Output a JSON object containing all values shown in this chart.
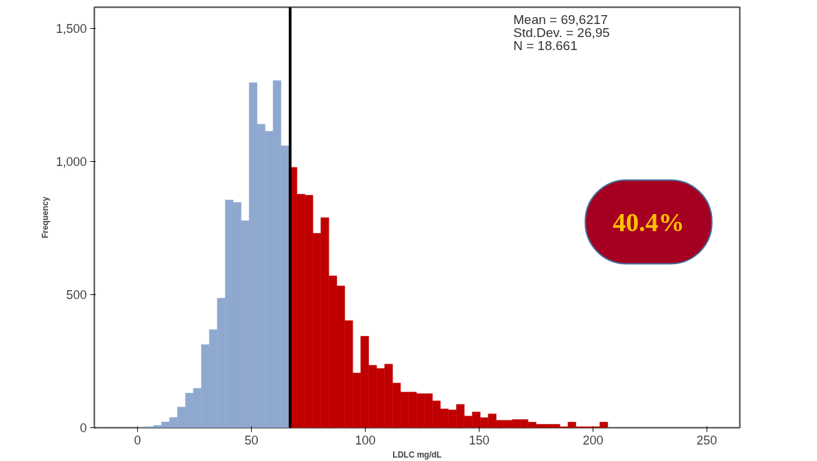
{
  "chart_data": {
    "type": "histogram",
    "bins": [
      0,
      3.5,
      7,
      10.5,
      14,
      17.5,
      21,
      24.5,
      28,
      31.5,
      35,
      38.5,
      42,
      45.5,
      49,
      52.5,
      56,
      59.5,
      63,
      66.5,
      70,
      73.5,
      77,
      80.5,
      84,
      87.5,
      91,
      94.5,
      98,
      101.5,
      105,
      108.5,
      112,
      115.5,
      119,
      122.5,
      126,
      129.5,
      133,
      136.5,
      140,
      143.5,
      147,
      150.5,
      154,
      157.5,
      161,
      164.5,
      168,
      171.5,
      175,
      178.5,
      182,
      185.5,
      189,
      192.5,
      196,
      199.5,
      203,
      206.5
    ],
    "values": [
      2,
      4,
      9,
      22,
      39,
      78,
      130,
      148,
      313,
      369,
      487,
      856,
      847,
      778,
      1297,
      1141,
      1115,
      1305,
      1060,
      979,
      878,
      874,
      731,
      790,
      571,
      533,
      403,
      206,
      344,
      235,
      223,
      239,
      168,
      134,
      134,
      128,
      128,
      101,
      71,
      67,
      88,
      44,
      59,
      38,
      52,
      28,
      28,
      31,
      31,
      21,
      13,
      13,
      13,
      4,
      21,
      4,
      4,
      4,
      21
    ],
    "colors": [
      "#8fa8d0",
      "#8fa8d0",
      "#8fa8d0",
      "#8fa8d0",
      "#8fa8d0",
      "#8fa8d0",
      "#8fa8d0",
      "#8fa8d0",
      "#8fa8d0",
      "#8fa8d0",
      "#8fa8d0",
      "#8fa8d0",
      "#8fa8d0",
      "#8fa8d0",
      "#8fa8d0",
      "#8fa8d0",
      "#8fa8d0",
      "#8fa8d0",
      "#8fa8d0",
      "#c00000",
      "#c00000",
      "#c00000",
      "#c00000",
      "#c00000",
      "#c00000",
      "#c00000",
      "#c00000",
      "#c00000",
      "#c00000",
      "#c00000",
      "#c00000",
      "#c00000",
      "#c00000",
      "#c00000",
      "#c00000",
      "#c00000",
      "#c00000",
      "#c00000",
      "#c00000",
      "#c00000",
      "#c00000",
      "#c00000",
      "#c00000",
      "#c00000",
      "#c00000",
      "#c00000",
      "#c00000",
      "#c00000",
      "#c00000",
      "#c00000",
      "#c00000",
      "#c00000",
      "#c00000",
      "#c00000",
      "#c00000",
      "#c00000",
      "#c00000",
      "#c00000",
      "#c00000"
    ],
    "xlabel": "LDLC mg/dL",
    "ylabel": "Frequency",
    "xlim": [
      -19,
      264.5
    ],
    "ylim": [
      0,
      1581
    ],
    "xticks": [
      0,
      50,
      100,
      150,
      200,
      250
    ],
    "yticks": [
      0,
      500,
      {
        "value": 1000,
        "label": "1,000"
      },
      {
        "value": 1500,
        "label": "1,500"
      }
    ],
    "ref_lines": [
      {
        "axis": "x",
        "value": 67,
        "color": "#000000"
      }
    ],
    "annotations": [
      "Mean = 69,6217",
      "Std.Dev. = 26,95",
      "N = 18.661",
      "40.4%"
    ],
    "grid": false
  }
}
